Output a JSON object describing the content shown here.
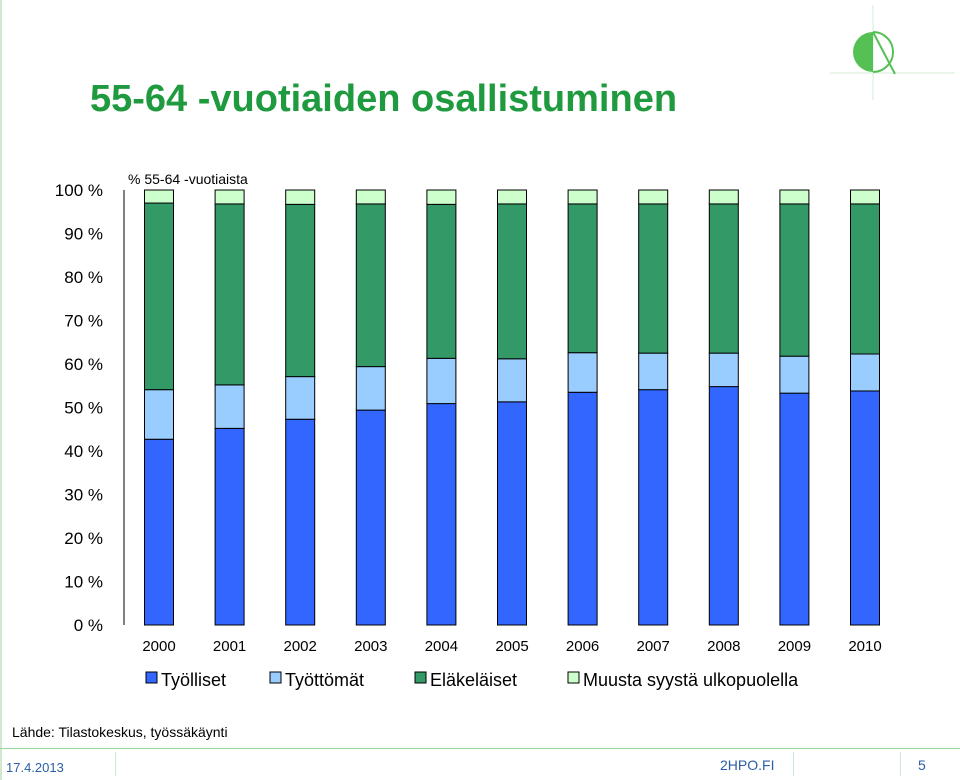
{
  "slide": {
    "title": "55-64 -vuotiaiden osallistuminen",
    "source": "Lähde: Tilastokeskus, työssäkäynti",
    "footer_date": "17.4.2013",
    "footer_site": "2HPO.FI",
    "page_number": "5"
  },
  "colors": {
    "title": "#1f9a3e",
    "Työlliset": "#3366ff",
    "Työttömät": "#99ccff",
    "Eläkeläiset": "#339966",
    "Muusta syystä ulkopuolella": "#ccffcc"
  },
  "chart_data": {
    "type": "bar",
    "stacked": true,
    "ylabel": "% 55-64 -vuotiaista",
    "ylim": [
      0,
      100
    ],
    "y_ticks": [
      "0 %",
      "10 %",
      "20 %",
      "30 %",
      "40 %",
      "50 %",
      "60 %",
      "70 %",
      "80 %",
      "90 %",
      "100 %"
    ],
    "categories": [
      "2000",
      "2001",
      "2002",
      "2003",
      "2004",
      "2005",
      "2006",
      "2007",
      "2008",
      "2009",
      "2010"
    ],
    "series": [
      {
        "name": "Työlliset",
        "values": [
          42.7,
          45.2,
          47.3,
          49.4,
          50.9,
          51.3,
          53.5,
          54.1,
          54.8,
          53.3,
          53.8
        ]
      },
      {
        "name": "Työttömät",
        "values": [
          11.4,
          10.0,
          9.8,
          10.0,
          10.4,
          9.9,
          9.1,
          8.4,
          7.7,
          8.5,
          8.5
        ]
      },
      {
        "name": "Eläkeläiset",
        "values": [
          42.9,
          41.6,
          39.6,
          37.4,
          35.4,
          35.6,
          34.2,
          34.3,
          34.3,
          35.0,
          34.5
        ]
      },
      {
        "name": "Muusta syystä ulkopuolella",
        "values": [
          3.0,
          3.2,
          3.3,
          3.2,
          3.3,
          3.2,
          3.2,
          3.2,
          3.2,
          3.2,
          3.2
        ]
      }
    ],
    "legend": "bottom",
    "grid": false
  }
}
